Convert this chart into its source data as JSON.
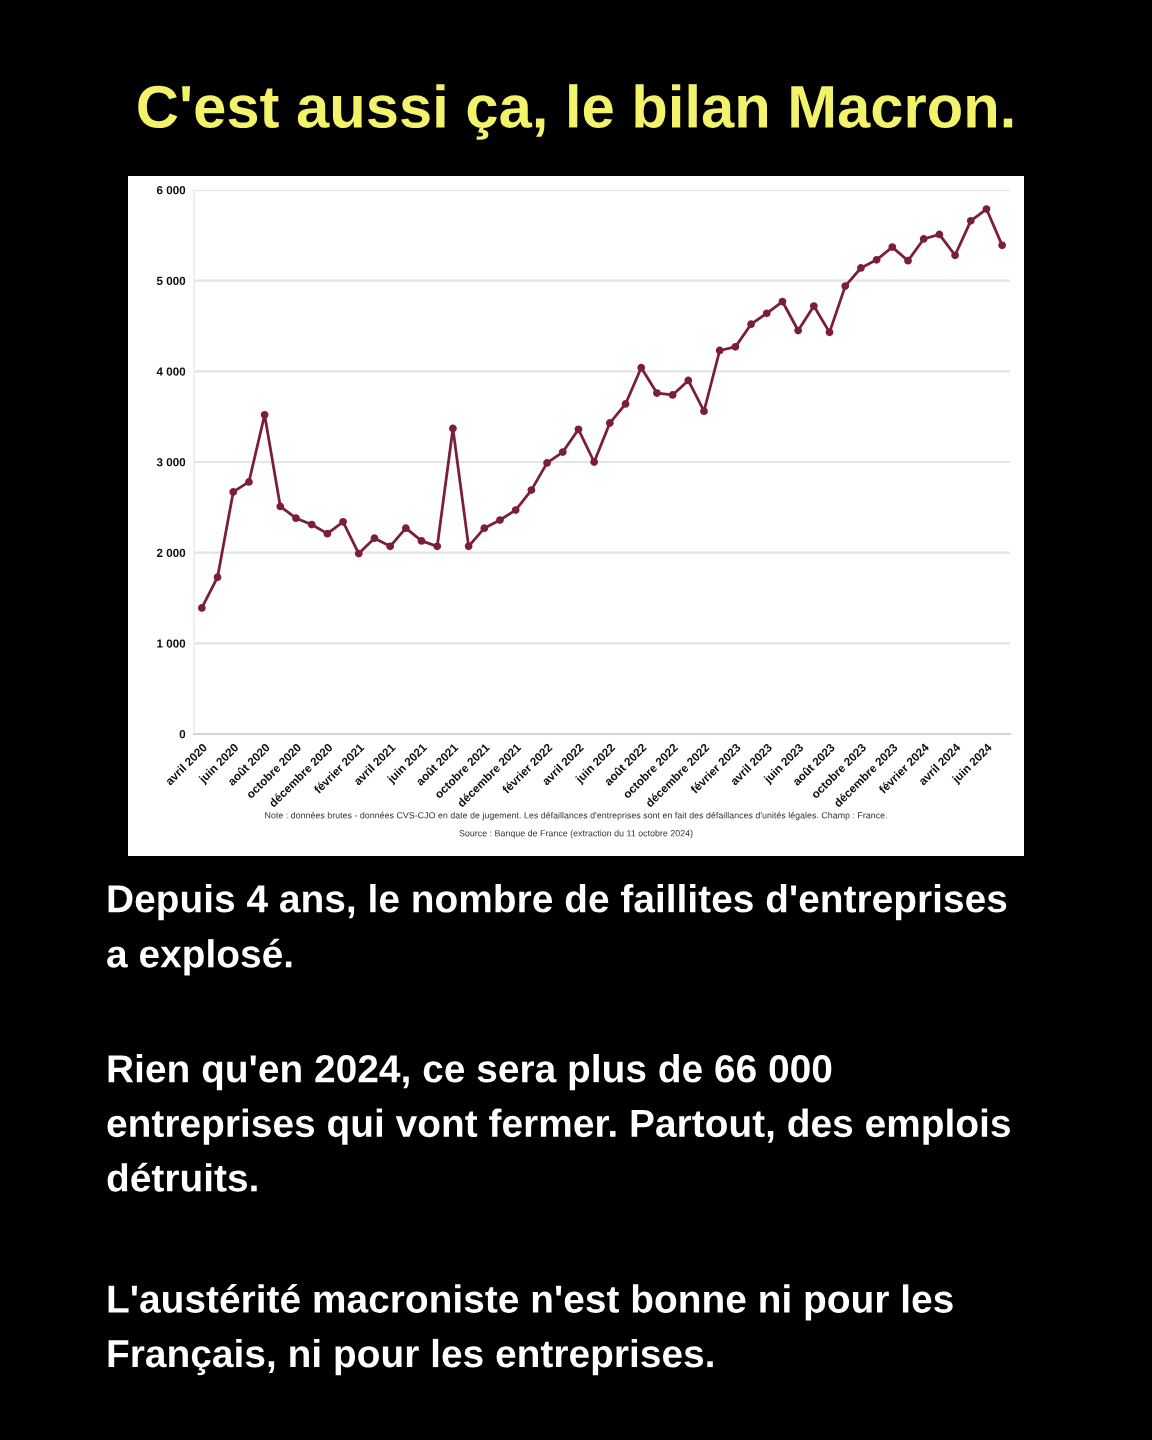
{
  "chart_data": {
    "type": "line",
    "title": "C'est aussi ça, le bilan Macron.",
    "categories": [
      "avril 2020",
      null,
      "juin 2020",
      null,
      "août 2020",
      null,
      "octobre 2020",
      null,
      "décembre 2020",
      null,
      "février 2021",
      null,
      "avril 2021",
      null,
      "juin 2021",
      null,
      "août 2021",
      null,
      "octobre 2021",
      null,
      "décembre 2021",
      null,
      "février 2022",
      null,
      "avril 2022",
      null,
      "juin 2022",
      null,
      "août 2022",
      null,
      "octobre 2022",
      null,
      "décembre 2022",
      null,
      "février 2023",
      null,
      "avril 2023",
      null,
      "juin 2023",
      null,
      "août 2023",
      null,
      "octobre 2023",
      null,
      "décembre 2023",
      null,
      "février 2024",
      null,
      "avril 2024",
      null,
      "juin 2024",
      null
    ],
    "series": [
      {
        "color": "#7b1e3c",
        "values": [
          1390,
          1730,
          2670,
          2780,
          3520,
          2510,
          2380,
          2310,
          2210,
          2340,
          1990,
          2160,
          2070,
          2270,
          2130,
          2070,
          3370,
          2070,
          2270,
          2360,
          2470,
          2690,
          2990,
          3110,
          3360,
          3000,
          3430,
          3640,
          4040,
          3760,
          3740,
          3900,
          3560,
          4230,
          4270,
          4520,
          4640,
          4770,
          4450,
          4720,
          4430,
          4940,
          5140,
          5230,
          5370,
          5220,
          5460,
          5510,
          5280,
          5660,
          5790,
          5390
        ]
      }
    ],
    "ylim": [
      0,
      6000
    ],
    "yticks": [
      0,
      {
        "value": 1000,
        "label": "1 000"
      },
      {
        "value": 2000,
        "label": "2 000"
      },
      {
        "value": 3000,
        "label": "3 000"
      },
      {
        "value": 4000,
        "label": "4 000"
      },
      {
        "value": 5000,
        "label": "5 000"
      },
      {
        "value": 6000,
        "label": "6 000"
      }
    ],
    "grid": "y",
    "marker": "circle",
    "line_style": "solid",
    "annotations": [
      "Note : données brutes - données CVS-CJO en date de jugement. Les défaillances d'entreprises sont en fait des défaillances d'unités légales. Champ : France.",
      "Source : Banque de France (extraction du 11 octobre 2024)",
      "Depuis 4 ans, le nombre de faillites d'entreprises a explosé.",
      "Rien qu'en 2024, ce sera plus de 66 000 entreprises qui vont fermer. Partout, des emplois détruits.",
      "L'austérité macroniste n'est bonne ni pour les Français, ni pour les entreprises."
    ]
  }
}
